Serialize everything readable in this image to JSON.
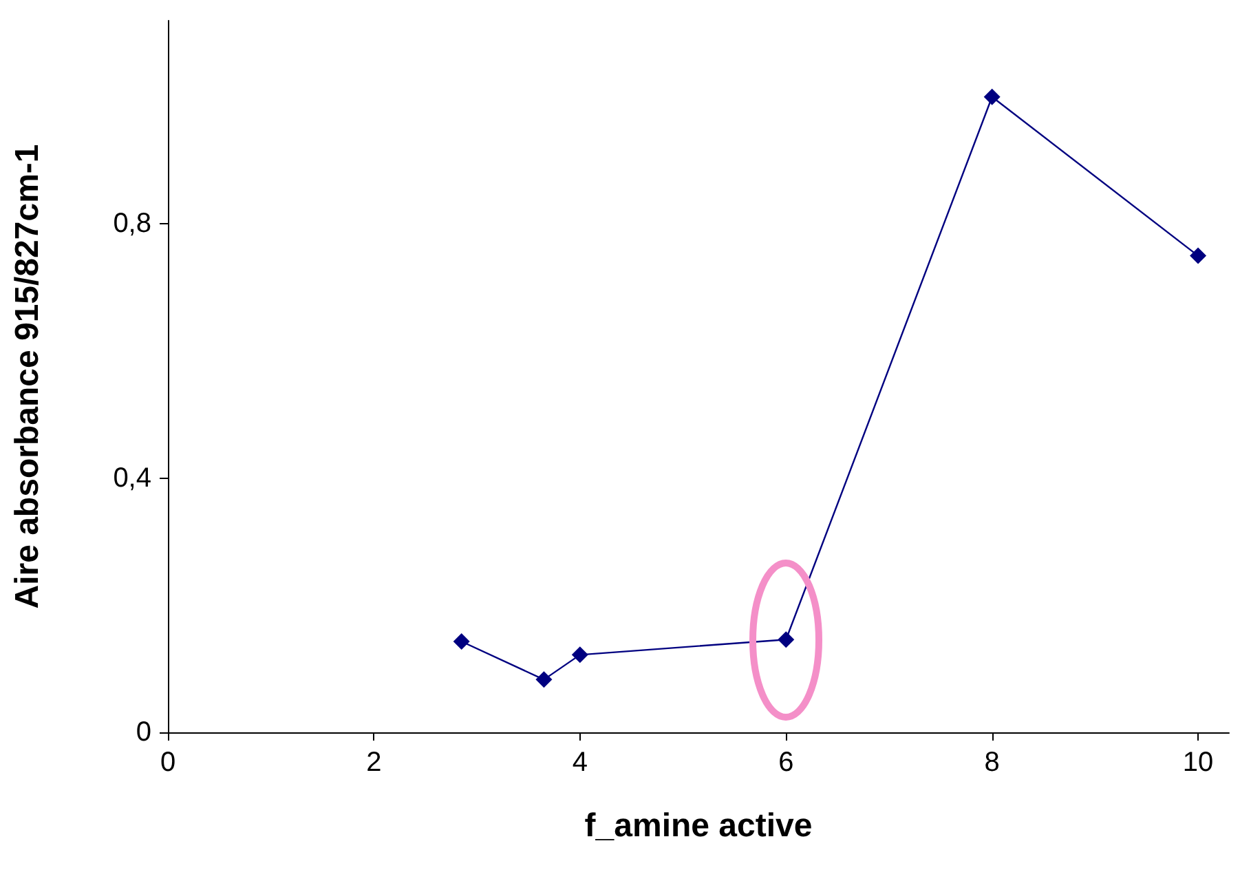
{
  "chart_data": {
    "type": "line",
    "xlabel": "f_amine active",
    "ylabel": "Aire absorbance 915/827cm-1",
    "x": [
      2.85,
      3.65,
      4.0,
      6.0,
      8.0,
      10.0
    ],
    "series": [
      {
        "color": "#000080",
        "values": [
          0.143,
          0.083,
          0.122,
          0.146,
          1.0,
          0.75
        ]
      }
    ],
    "xlim": [
      0,
      10.3
    ],
    "xticks": [
      0,
      2,
      4,
      6,
      8,
      10
    ],
    "ylim": [
      0,
      1.12
    ],
    "yticks": [
      {
        "value": 0,
        "label": "0"
      },
      {
        "value": 0.4,
        "label": "0,4"
      },
      {
        "value": 0.8,
        "label": "0,8"
      }
    ],
    "grid": false,
    "marker": "diamond",
    "line_style": "solid"
  }
}
